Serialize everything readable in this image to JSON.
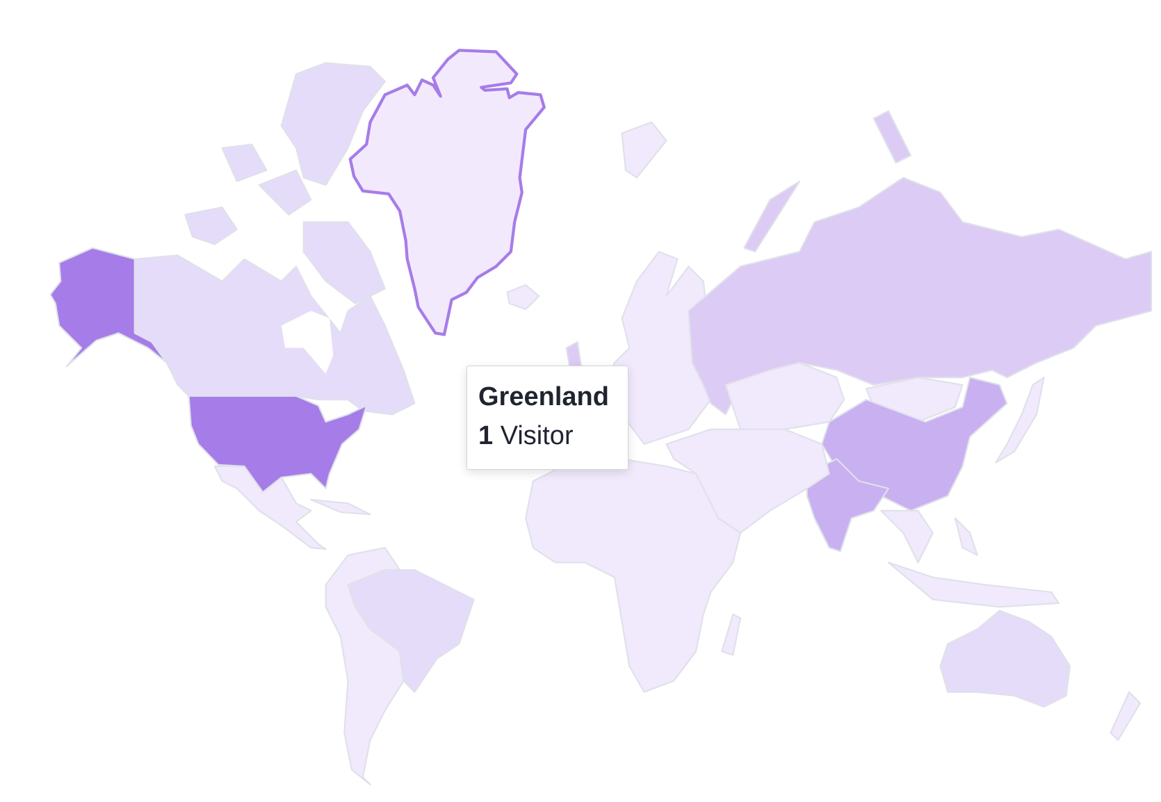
{
  "tooltip": {
    "country": "Greenland",
    "count": "1",
    "unit": "Visitor"
  },
  "colors": {
    "level_highest": "#a67ce8",
    "level_high": "#c9b0f1",
    "level_mid": "#dccbf5",
    "level_low": "#e5dcfa",
    "level_none": "#f1e9fc",
    "hover_fill": "#f3e9fd",
    "hover_stroke": "#a67ce8",
    "border": "#dfe1ea"
  }
}
